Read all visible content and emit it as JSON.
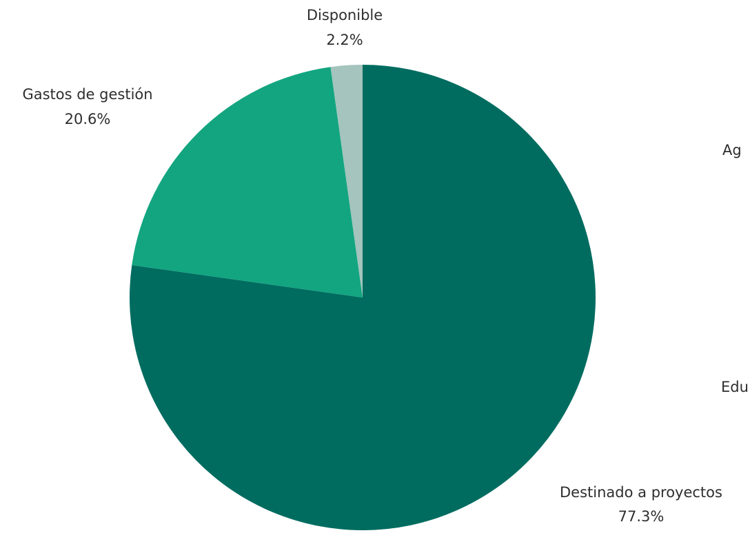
{
  "chart_data": {
    "type": "pie",
    "title": "",
    "slices": [
      {
        "label": "Destinado a proyectos",
        "value": 77.3,
        "value_label": "77.3%",
        "color": "#006c60"
      },
      {
        "label": "Gastos de gestión",
        "value": 20.6,
        "value_label": "20.6%",
        "color": "#12a580"
      },
      {
        "label": "Disponible",
        "value": 2.2,
        "value_label": "2.2%",
        "color": "#a4c4bd"
      }
    ],
    "partial_labels": [
      {
        "text": "Ag"
      },
      {
        "text": "Edu"
      }
    ],
    "legend": "none"
  }
}
